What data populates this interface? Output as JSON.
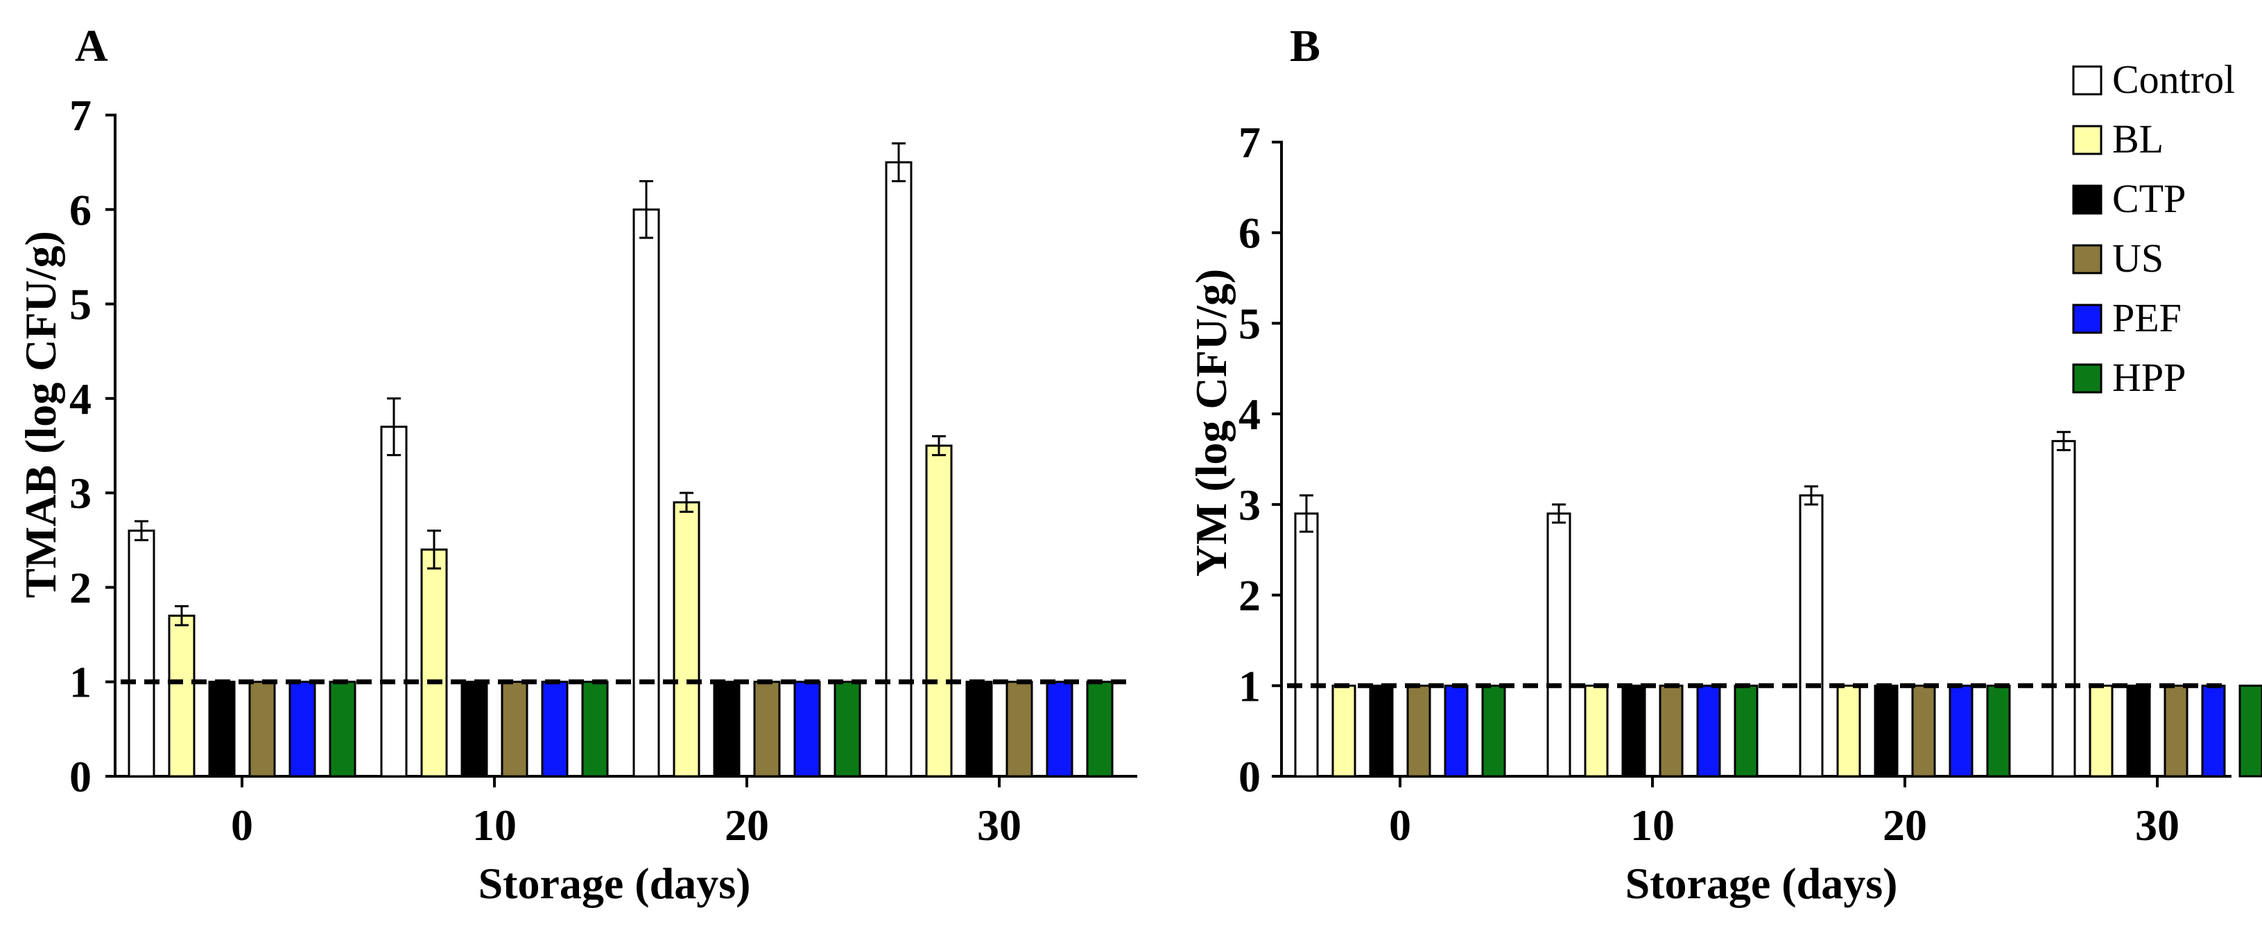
{
  "colors": {
    "Control": "#ffffff",
    "BL": "#ffffa8",
    "CTP": "#000000",
    "US": "#8b7a3e",
    "PEF": "#0b17ff",
    "HPP": "#0b7a16"
  },
  "legend": [
    "Control",
    "BL",
    "CTP",
    "US",
    "PEF",
    "HPP"
  ],
  "chart_data": [
    {
      "type": "bar",
      "panel": "A",
      "title": "",
      "xlabel": "Storage (days)",
      "ylabel": "TMAB (log CFU/g)",
      "categories": [
        "0",
        "10",
        "20",
        "30"
      ],
      "ylim": [
        0,
        7
      ],
      "yticks": [
        "0",
        "1",
        "2",
        "3",
        "4",
        "5",
        "6",
        "7"
      ],
      "detection_limit": 1,
      "grid": false,
      "series": [
        {
          "name": "Control",
          "values": [
            2.6,
            3.7,
            6.0,
            6.5
          ],
          "errors": [
            0.1,
            0.3,
            0.3,
            0.2
          ]
        },
        {
          "name": "BL",
          "values": [
            1.7,
            2.4,
            2.9,
            3.5
          ],
          "errors": [
            0.1,
            0.2,
            0.1,
            0.1
          ]
        },
        {
          "name": "CTP",
          "values": [
            1.0,
            1.0,
            1.0,
            1.0
          ],
          "errors": [
            0,
            0,
            0,
            0
          ]
        },
        {
          "name": "US",
          "values": [
            1.0,
            1.0,
            1.0,
            1.0
          ],
          "errors": [
            0,
            0,
            0,
            0
          ]
        },
        {
          "name": "PEF",
          "values": [
            1.0,
            1.0,
            1.0,
            1.0
          ],
          "errors": [
            0,
            0,
            0,
            0
          ]
        },
        {
          "name": "HPP",
          "values": [
            1.0,
            1.0,
            1.0,
            1.0
          ],
          "errors": [
            0,
            0,
            0,
            0
          ]
        }
      ]
    },
    {
      "type": "bar",
      "panel": "B",
      "title": "",
      "xlabel": "Storage (days)",
      "ylabel": "YM (log CFU/g)",
      "categories": [
        "0",
        "10",
        "20",
        "30"
      ],
      "ylim": [
        0,
        7
      ],
      "yticks": [
        "0",
        "1",
        "2",
        "3",
        "4",
        "5",
        "6",
        "7"
      ],
      "detection_limit": 1,
      "grid": false,
      "legend_position": "top-right",
      "series": [
        {
          "name": "Control",
          "values": [
            2.9,
            2.9,
            3.1,
            3.7
          ],
          "errors": [
            0.2,
            0.1,
            0.1,
            0.1
          ]
        },
        {
          "name": "BL",
          "values": [
            1.0,
            1.0,
            1.0,
            1.0
          ],
          "errors": [
            0,
            0,
            0,
            0
          ]
        },
        {
          "name": "CTP",
          "values": [
            1.0,
            1.0,
            1.0,
            1.0
          ],
          "errors": [
            0,
            0,
            0,
            0
          ]
        },
        {
          "name": "US",
          "values": [
            1.0,
            1.0,
            1.0,
            1.0
          ],
          "errors": [
            0,
            0,
            0,
            0
          ]
        },
        {
          "name": "PEF",
          "values": [
            1.0,
            1.0,
            1.0,
            1.0
          ],
          "errors": [
            0,
            0,
            0,
            0
          ]
        },
        {
          "name": "HPP",
          "values": [
            1.0,
            1.0,
            1.0,
            1.0
          ],
          "errors": [
            0,
            0,
            0,
            0
          ]
        }
      ]
    }
  ]
}
